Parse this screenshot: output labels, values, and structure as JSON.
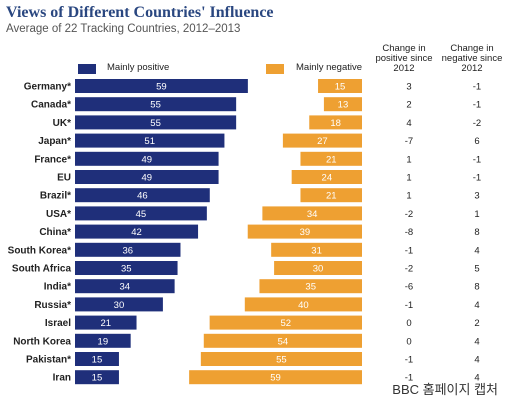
{
  "title": "Views of Different Countries' Influence",
  "subtitle": "Average of 22 Tracking Countries, 2012–2013",
  "columns": {
    "positive_change": [
      "Change in",
      "positive since",
      "2012"
    ],
    "negative_change": [
      "Change in",
      "negative since",
      "2012"
    ]
  },
  "caption": "BBC 홈페이지 캡처",
  "colors": {
    "positive": "#1f2f7a",
    "negative": "#eea032",
    "title": "#2a4780"
  },
  "chart_data": {
    "type": "bar",
    "legend": [
      "Mainly positive",
      "Mainly negative"
    ],
    "categories": [
      "Germany*",
      "Canada*",
      "UK*",
      "Japan*",
      "France*",
      "EU",
      "Brazil*",
      "USA*",
      "China*",
      "South Korea*",
      "South Africa",
      "India*",
      "Russia*",
      "Israel",
      "North Korea",
      "Pakistan*",
      "Iran"
    ],
    "series": [
      {
        "name": "Mainly positive",
        "values": [
          59,
          55,
          55,
          51,
          49,
          49,
          46,
          45,
          42,
          36,
          35,
          34,
          30,
          21,
          19,
          15,
          15
        ]
      },
      {
        "name": "Mainly negative",
        "values": [
          15,
          13,
          18,
          27,
          21,
          24,
          21,
          34,
          39,
          31,
          30,
          35,
          40,
          52,
          54,
          55,
          59
        ]
      }
    ],
    "change_positive": [
      "3",
      "2",
      "4",
      "-7",
      "1",
      "1",
      "1",
      "-2",
      "-8",
      "-1",
      "-2",
      "-6",
      "-1",
      "0",
      "0",
      "-1",
      "-1"
    ],
    "change_negative": [
      "-1",
      "-1",
      "-2",
      "6",
      "-1",
      "-1",
      "3",
      "1",
      "8",
      "4",
      "5",
      "8",
      "4",
      "2",
      "4",
      "4",
      "4"
    ]
  }
}
